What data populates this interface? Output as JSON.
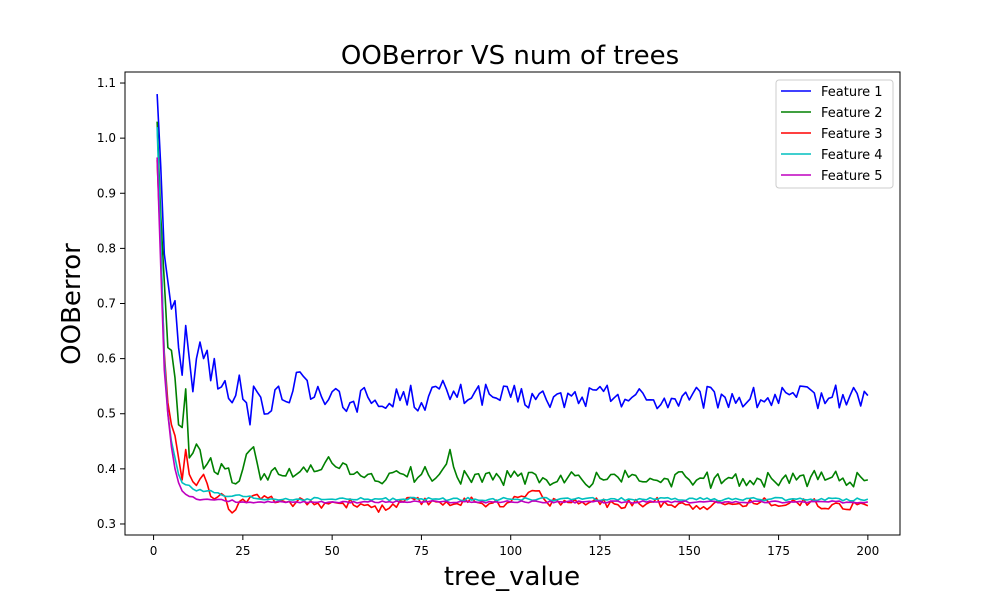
{
  "chart_data": {
    "type": "line",
    "title": "OOBerror VS num of trees",
    "xlabel": "tree_value",
    "ylabel": "OOBerror",
    "xlim": [
      -8,
      209
    ],
    "ylim": [
      0.28,
      1.12
    ],
    "xticks": [
      0,
      25,
      50,
      75,
      100,
      125,
      150,
      175,
      200
    ],
    "yticks": [
      0.3,
      0.4,
      0.5,
      0.6,
      0.7,
      0.8,
      0.9,
      1.0,
      1.1
    ],
    "xtick_labels": [
      "0",
      "25",
      "50",
      "75",
      "100",
      "125",
      "150",
      "175",
      "200"
    ],
    "ytick_labels": [
      "0.3",
      "0.4",
      "0.5",
      "0.6",
      "0.7",
      "0.8",
      "0.9",
      "1.0",
      "1.1"
    ],
    "grid": false,
    "legend_position": "top-right",
    "x_range": [
      1,
      200
    ],
    "series": [
      {
        "name": "Feature 1",
        "color": "#0000ff",
        "keypoints": [
          [
            1,
            1.08
          ],
          [
            2,
            0.95
          ],
          [
            3,
            0.79
          ],
          [
            4,
            0.74
          ],
          [
            5,
            0.69
          ],
          [
            6,
            0.705
          ],
          [
            7,
            0.62
          ],
          [
            8,
            0.57
          ],
          [
            9,
            0.66
          ],
          [
            10,
            0.6
          ],
          [
            11,
            0.54
          ],
          [
            12,
            0.6
          ],
          [
            13,
            0.63
          ],
          [
            14,
            0.6
          ],
          [
            15,
            0.615
          ],
          [
            16,
            0.56
          ],
          [
            17,
            0.6
          ],
          [
            18,
            0.545
          ],
          [
            20,
            0.56
          ],
          [
            22,
            0.52
          ],
          [
            24,
            0.57
          ],
          [
            26,
            0.52
          ],
          [
            27,
            0.48
          ],
          [
            28,
            0.55
          ],
          [
            30,
            0.53
          ],
          [
            32,
            0.5
          ],
          [
            35,
            0.55
          ],
          [
            38,
            0.52
          ],
          [
            40,
            0.575
          ],
          [
            45,
            0.53
          ],
          [
            50,
            0.54
          ],
          [
            55,
            0.52
          ],
          [
            60,
            0.53
          ],
          [
            65,
            0.51
          ],
          [
            70,
            0.54
          ],
          [
            75,
            0.52
          ],
          [
            80,
            0.545
          ],
          [
            85,
            0.53
          ],
          [
            90,
            0.54
          ],
          [
            95,
            0.53
          ],
          [
            100,
            0.53
          ],
          [
            110,
            0.525
          ],
          [
            120,
            0.53
          ],
          [
            130,
            0.535
          ],
          [
            140,
            0.525
          ],
          [
            150,
            0.525
          ],
          [
            160,
            0.53
          ],
          [
            170,
            0.525
          ],
          [
            180,
            0.53
          ],
          [
            190,
            0.53
          ],
          [
            200,
            0.533
          ]
        ],
        "noise": 0.022
      },
      {
        "name": "Feature 2",
        "color": "#008000",
        "keypoints": [
          [
            1,
            1.03
          ],
          [
            2,
            0.86
          ],
          [
            3,
            0.74
          ],
          [
            4,
            0.62
          ],
          [
            5,
            0.615
          ],
          [
            6,
            0.565
          ],
          [
            7,
            0.48
          ],
          [
            8,
            0.475
          ],
          [
            9,
            0.545
          ],
          [
            10,
            0.42
          ],
          [
            12,
            0.445
          ],
          [
            14,
            0.4
          ],
          [
            16,
            0.42
          ],
          [
            18,
            0.39
          ],
          [
            20,
            0.4
          ],
          [
            22,
            0.375
          ],
          [
            25,
            0.4
          ],
          [
            28,
            0.44
          ],
          [
            30,
            0.38
          ],
          [
            35,
            0.39
          ],
          [
            40,
            0.39
          ],
          [
            45,
            0.395
          ],
          [
            50,
            0.41
          ],
          [
            55,
            0.39
          ],
          [
            60,
            0.39
          ],
          [
            65,
            0.38
          ],
          [
            70,
            0.39
          ],
          [
            75,
            0.39
          ],
          [
            80,
            0.39
          ],
          [
            83,
            0.435
          ],
          [
            85,
            0.385
          ],
          [
            90,
            0.39
          ],
          [
            95,
            0.38
          ],
          [
            100,
            0.385
          ],
          [
            110,
            0.38
          ],
          [
            120,
            0.38
          ],
          [
            130,
            0.385
          ],
          [
            140,
            0.38
          ],
          [
            150,
            0.38
          ],
          [
            160,
            0.38
          ],
          [
            170,
            0.38
          ],
          [
            180,
            0.38
          ],
          [
            190,
            0.385
          ],
          [
            200,
            0.38
          ]
        ],
        "noise": 0.015
      },
      {
        "name": "Feature 3",
        "color": "#ff0000",
        "keypoints": [
          [
            1,
            0.96
          ],
          [
            2,
            0.8
          ],
          [
            3,
            0.61
          ],
          [
            4,
            0.52
          ],
          [
            5,
            0.48
          ],
          [
            6,
            0.46
          ],
          [
            7,
            0.42
          ],
          [
            8,
            0.38
          ],
          [
            9,
            0.435
          ],
          [
            10,
            0.39
          ],
          [
            12,
            0.37
          ],
          [
            14,
            0.39
          ],
          [
            16,
            0.35
          ],
          [
            20,
            0.35
          ],
          [
            22,
            0.32
          ],
          [
            25,
            0.345
          ],
          [
            30,
            0.345
          ],
          [
            35,
            0.34
          ],
          [
            40,
            0.34
          ],
          [
            45,
            0.335
          ],
          [
            50,
            0.34
          ],
          [
            60,
            0.335
          ],
          [
            65,
            0.325
          ],
          [
            70,
            0.34
          ],
          [
            80,
            0.34
          ],
          [
            90,
            0.34
          ],
          [
            100,
            0.34
          ],
          [
            107,
            0.36
          ],
          [
            110,
            0.34
          ],
          [
            120,
            0.34
          ],
          [
            130,
            0.335
          ],
          [
            140,
            0.34
          ],
          [
            150,
            0.335
          ],
          [
            160,
            0.335
          ],
          [
            170,
            0.34
          ],
          [
            180,
            0.34
          ],
          [
            190,
            0.335
          ],
          [
            200,
            0.333
          ]
        ],
        "noise": 0.009
      },
      {
        "name": "Feature 4",
        "color": "#00bfbf",
        "keypoints": [
          [
            1,
            1.02
          ],
          [
            2,
            0.82
          ],
          [
            3,
            0.6
          ],
          [
            4,
            0.5
          ],
          [
            5,
            0.45
          ],
          [
            6,
            0.42
          ],
          [
            7,
            0.39
          ],
          [
            8,
            0.375
          ],
          [
            10,
            0.37
          ],
          [
            12,
            0.36
          ],
          [
            15,
            0.36
          ],
          [
            20,
            0.35
          ],
          [
            25,
            0.35
          ],
          [
            30,
            0.345
          ],
          [
            40,
            0.345
          ],
          [
            50,
            0.345
          ],
          [
            60,
            0.345
          ],
          [
            70,
            0.345
          ],
          [
            80,
            0.345
          ],
          [
            90,
            0.345
          ],
          [
            100,
            0.345
          ],
          [
            120,
            0.345
          ],
          [
            140,
            0.345
          ],
          [
            160,
            0.345
          ],
          [
            180,
            0.345
          ],
          [
            200,
            0.345
          ]
        ],
        "noise": 0.003
      },
      {
        "name": "Feature 5",
        "color": "#bf00bf",
        "keypoints": [
          [
            1,
            0.965
          ],
          [
            2,
            0.77
          ],
          [
            3,
            0.58
          ],
          [
            4,
            0.5
          ],
          [
            5,
            0.44
          ],
          [
            6,
            0.4
          ],
          [
            7,
            0.375
          ],
          [
            8,
            0.36
          ],
          [
            10,
            0.35
          ],
          [
            12,
            0.345
          ],
          [
            15,
            0.345
          ],
          [
            20,
            0.342
          ],
          [
            30,
            0.34
          ],
          [
            40,
            0.34
          ],
          [
            50,
            0.34
          ],
          [
            60,
            0.34
          ],
          [
            70,
            0.34
          ],
          [
            80,
            0.34
          ],
          [
            90,
            0.34
          ],
          [
            100,
            0.34
          ],
          [
            120,
            0.34
          ],
          [
            140,
            0.34
          ],
          [
            160,
            0.34
          ],
          [
            180,
            0.34
          ],
          [
            200,
            0.34
          ]
        ],
        "noise": 0.002
      }
    ]
  }
}
